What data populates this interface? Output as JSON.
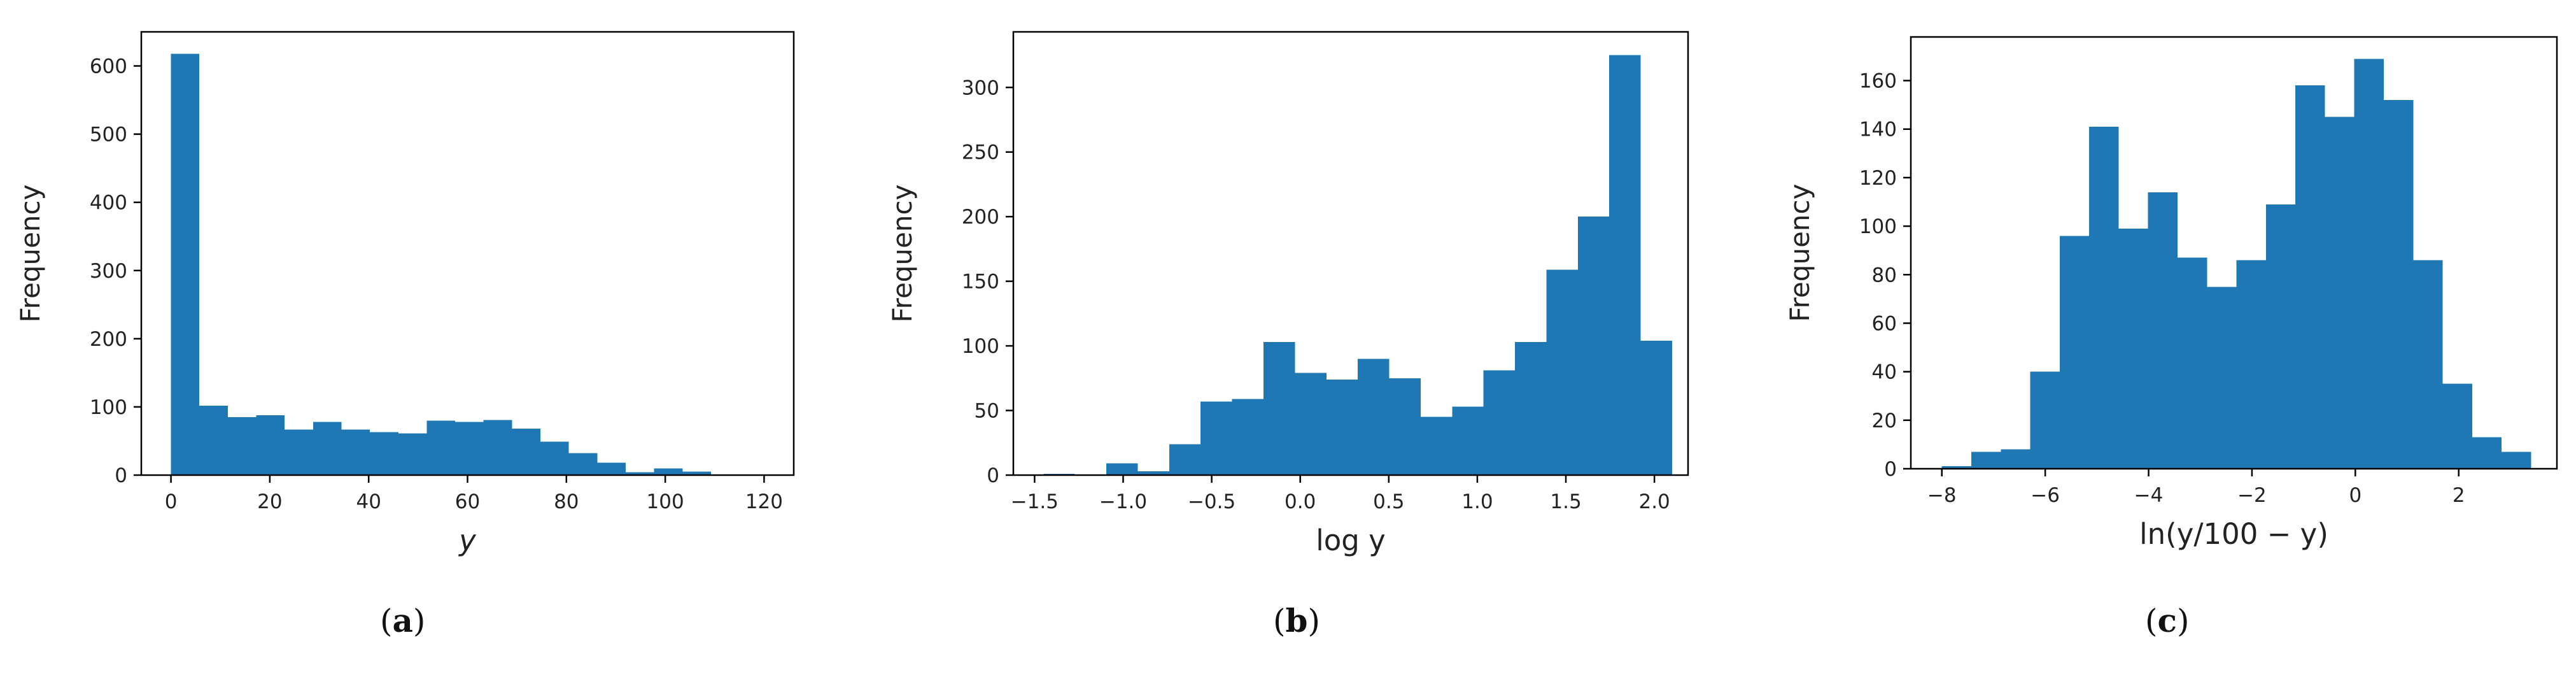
{
  "panels": [
    {
      "label_open": "(",
      "label_letter": "a",
      "label_close": ")"
    },
    {
      "label_open": "(",
      "label_letter": "b",
      "label_close": ")"
    },
    {
      "label_open": "(",
      "label_letter": "c",
      "label_close": ")"
    }
  ],
  "colors": {
    "bar": "#1f77b4",
    "axis": "#000000",
    "text": "#222222"
  },
  "chart_data": [
    {
      "type": "bar",
      "subtype": "histogram",
      "xlabel": "y",
      "ylabel": "Frequency",
      "xlim": [
        -6,
        126
      ],
      "ylim": [
        0,
        650
      ],
      "xticks": [
        0,
        20,
        40,
        60,
        80,
        100,
        120
      ],
      "yticks": [
        0,
        100,
        200,
        300,
        400,
        500,
        600
      ],
      "bin_edges": [
        0,
        5.75,
        11.5,
        17.25,
        23,
        28.75,
        34.5,
        40.25,
        46,
        51.75,
        57.5,
        63.25,
        69,
        74.75,
        80.5,
        86.25,
        92,
        97.75,
        103.5,
        109.25,
        115
      ],
      "values": [
        618,
        102,
        85,
        88,
        67,
        78,
        67,
        63,
        61,
        80,
        78,
        81,
        68,
        49,
        32,
        18,
        4,
        10,
        5,
        0
      ]
    },
    {
      "type": "bar",
      "subtype": "histogram",
      "xlabel": "log y",
      "ylabel": "Frequency",
      "xlim": [
        -1.62,
        2.19
      ],
      "ylim": [
        0,
        343
      ],
      "xticks": [
        -1.5,
        -1.0,
        -0.5,
        0.0,
        0.5,
        1.0,
        1.5,
        2.0
      ],
      "ytick_labels": [
        "0",
        "50",
        "100",
        "150",
        "200",
        "250",
        "300"
      ],
      "xtick_labels": [
        "−1.5",
        "−1.0",
        "−0.5",
        "0.0",
        "0.5",
        "1.0",
        "1.5",
        "2.0"
      ],
      "bin_edges": [
        -1.45,
        -1.273,
        -1.095,
        -0.918,
        -0.74,
        -0.563,
        -0.385,
        -0.208,
        -0.03,
        0.148,
        0.325,
        0.503,
        0.68,
        0.858,
        1.035,
        1.213,
        1.39,
        1.568,
        1.745,
        1.923,
        2.1
      ],
      "values": [
        1,
        0,
        9,
        3,
        24,
        57,
        59,
        103,
        79,
        74,
        90,
        75,
        45,
        53,
        81,
        103,
        159,
        200,
        325,
        104
      ]
    },
    {
      "type": "bar",
      "subtype": "histogram",
      "xlabel": "ln(y/100 − y)",
      "ylabel": "Frequency",
      "xlim": [
        -8.6,
        3.9
      ],
      "ylim": [
        0,
        178
      ],
      "xticks": [
        -8,
        -6,
        -4,
        -2,
        0,
        2
      ],
      "xtick_labels": [
        "−8",
        "−6",
        "−4",
        "−2",
        "0",
        "2"
      ],
      "yticks": [
        0,
        20,
        40,
        60,
        80,
        100,
        120,
        140,
        160
      ],
      "bin_edges": [
        -8.0,
        -7.43,
        -6.86,
        -6.29,
        -5.72,
        -5.15,
        -4.58,
        -4.01,
        -3.44,
        -2.87,
        -2.3,
        -1.73,
        -1.16,
        -0.59,
        -0.02,
        0.55,
        1.12,
        1.69,
        2.26,
        2.83,
        3.4
      ],
      "values": [
        1,
        7,
        8,
        40,
        96,
        141,
        99,
        114,
        87,
        75,
        86,
        109,
        158,
        145,
        169,
        152,
        86,
        35,
        13,
        7
      ]
    }
  ]
}
